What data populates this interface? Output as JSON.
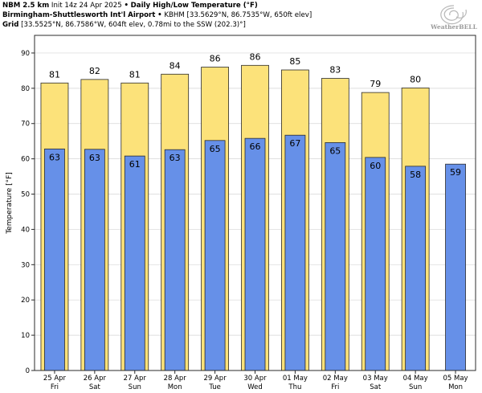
{
  "header": {
    "line1_model": "NBM 2.5 km",
    "line1_init": "Init 14z 24 Apr 2025",
    "line1_sep": "•",
    "line1_product": "Daily High/Low Temperature (°F)",
    "line2_station": "Birmingham-Shuttlesworth Int'l Airport",
    "line2_sep": "•",
    "line2_detail": "KBHM [33.5629°N, 86.7535°W, 650ft elev]",
    "line3_label": "Grid",
    "line3_detail": "[33.5525°N, 86.7586°W, 604ft elev, 0.78mi to the SSW (202.3)°]"
  },
  "logo": {
    "text": "WeatherBELL",
    "icon": "weatherbell-swirl-logo"
  },
  "colors": {
    "high": "#fce27a",
    "low": "#6690e8",
    "outline": "#2b2b2b",
    "grid": "#d6d6d6"
  },
  "chart_data": {
    "type": "bar",
    "categories": [
      "25 Apr Fri",
      "26 Apr Sat",
      "27 Apr Sun",
      "28 Apr Mon",
      "29 Apr Tue",
      "30 Apr Wed",
      "01 May Thu",
      "02 May Fri",
      "03 May Sat",
      "04 May Sun",
      "05 May Mon"
    ],
    "x_tick_dates": [
      "25 Apr",
      "26 Apr",
      "27 Apr",
      "28 Apr",
      "29 Apr",
      "30 Apr",
      "01 May",
      "02 May",
      "03 May",
      "04 May",
      "05 May"
    ],
    "x_tick_days": [
      "Fri",
      "Sat",
      "Sun",
      "Mon",
      "Tue",
      "Wed",
      "Thu",
      "Fri",
      "Sat",
      "Sun",
      "Mon"
    ],
    "series": [
      {
        "values": [
          81,
          82,
          81,
          84,
          86,
          86,
          85,
          83,
          79,
          80,
          null
        ]
      },
      {
        "values": [
          63,
          63,
          61,
          63,
          65,
          66,
          67,
          65,
          60,
          58,
          59
        ]
      }
    ],
    "plot_values": {
      "high": [
        81.5,
        82.5,
        81.5,
        84.0,
        86.0,
        86.5,
        85.2,
        82.8,
        78.8,
        80.1,
        null
      ],
      "low": [
        62.8,
        62.7,
        60.8,
        62.6,
        65.2,
        65.8,
        66.7,
        64.6,
        60.4,
        57.9,
        58.5
      ]
    },
    "ylabel": "Temperature [°F]",
    "ylim": [
      0,
      95
    ],
    "yticks": [
      0,
      10,
      20,
      30,
      40,
      50,
      60,
      70,
      80,
      90
    ],
    "grid": true
  }
}
